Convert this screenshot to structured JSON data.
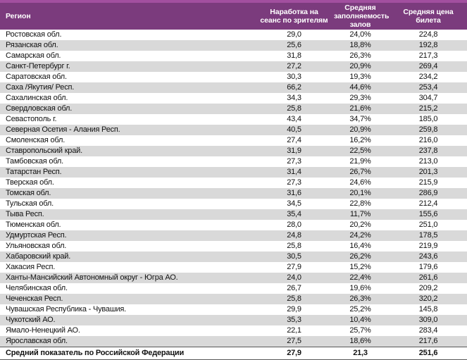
{
  "colors": {
    "stripe": "#A24F9F",
    "header_bg": "#7B3B7D",
    "header_text": "#FFFFFF",
    "body_text": "#111111",
    "row_bg": "#FFFFFF",
    "row_alt": "#D9D9D9",
    "total_border": "#595959"
  },
  "chart_data": {
    "type": "table",
    "columns": [
      {
        "id": "region",
        "label": "Регион",
        "align": "left"
      },
      {
        "id": "per_session_viewers",
        "label": "Наработка на сеанс по зрителям",
        "align": "center"
      },
      {
        "id": "avg_occupancy",
        "label": "Средняя заполняемость залов",
        "align": "center"
      },
      {
        "id": "avg_ticket_price",
        "label": "Средняя цена билета",
        "align": "center"
      }
    ],
    "rows": [
      [
        "Ростовская обл.",
        "29,0",
        "24,0%",
        "224,8"
      ],
      [
        "Рязанская обл.",
        "25,6",
        "18,8%",
        "192,8"
      ],
      [
        "Самарская обл.",
        "31,8",
        "26,3%",
        "217,3"
      ],
      [
        "Санкт-Петербург г.",
        "27,2",
        "20,9%",
        "269,4"
      ],
      [
        "Саратовская обл.",
        "30,3",
        "19,3%",
        "234,2"
      ],
      [
        "Саха /Якутия/ Респ.",
        "66,2",
        "44,6%",
        "253,4"
      ],
      [
        "Сахалинская обл.",
        "34,3",
        "29,3%",
        "304,7"
      ],
      [
        "Свердловская обл.",
        "25,8",
        "21,6%",
        "215,2"
      ],
      [
        "Севастополь г.",
        "43,4",
        "34,7%",
        "185,0"
      ],
      [
        "Северная Осетия - Алания Респ.",
        "40,5",
        "20,9%",
        "259,8"
      ],
      [
        "Смоленская обл.",
        "27,4",
        "16,2%",
        "216,0"
      ],
      [
        "Ставропольский край.",
        "31,9",
        "22,5%",
        "237,8"
      ],
      [
        "Тамбовская обл.",
        "27,3",
        "21,9%",
        "213,0"
      ],
      [
        "Татарстан Респ.",
        "31,4",
        "26,7%",
        "201,3"
      ],
      [
        "Тверская обл.",
        "27,3",
        "24,6%",
        "215,9"
      ],
      [
        "Томская обл.",
        "31,6",
        "20,1%",
        "286,9"
      ],
      [
        "Тульская обл.",
        "34,5",
        "22,8%",
        "212,4"
      ],
      [
        "Тыва Респ.",
        "35,4",
        "11,7%",
        "155,6"
      ],
      [
        "Тюменская обл.",
        "28,0",
        "20,2%",
        "251,0"
      ],
      [
        "Удмуртская Респ.",
        "24,8",
        "24,2%",
        "178,5"
      ],
      [
        "Ульяновская обл.",
        "25,8",
        "16,4%",
        "219,9"
      ],
      [
        "Хабаровский край.",
        "30,5",
        "26,2%",
        "243,6"
      ],
      [
        "Хакасия Респ.",
        "27,9",
        "15,2%",
        "179,6"
      ],
      [
        "Ханты-Мансийский Автономный округ - Югра АО.",
        "24,0",
        "22,4%",
        "261,6"
      ],
      [
        "Челябинская обл.",
        "26,7",
        "19,6%",
        "209,2"
      ],
      [
        "Чеченская Респ.",
        "25,8",
        "26,3%",
        "320,2"
      ],
      [
        "Чувашская Республика - Чувашия.",
        "29,9",
        "25,2%",
        "145,8"
      ],
      [
        "Чукотский АО.",
        "35,3",
        "10,4%",
        "309,0"
      ],
      [
        "Ямало-Ненецкий АО.",
        "22,1",
        "25,7%",
        "283,4"
      ],
      [
        "Ярославская обл.",
        "27,5",
        "18,6%",
        "217,6"
      ]
    ],
    "total_row": [
      "Средний показатель по Российской Федерации",
      "27,9",
      "21,3",
      "251,6"
    ]
  }
}
